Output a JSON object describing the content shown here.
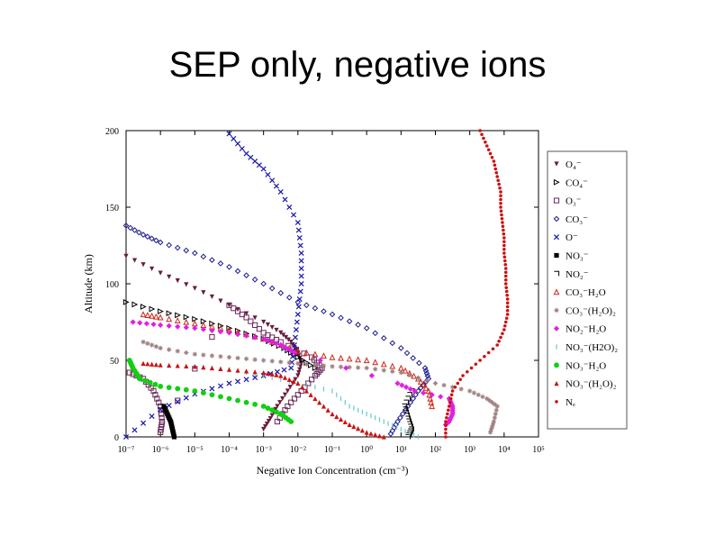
{
  "slide": {
    "title": "SEP only, negative ions"
  },
  "chart_data": {
    "type": "scatter",
    "title": "SEP only, negative ions",
    "xlabel": "Negative Ion Concentration (cm⁻³)",
    "ylabel": "Altitude (km)",
    "xscale": "log",
    "xlim": [
      1e-07,
      100000.0
    ],
    "ylim": [
      0,
      200
    ],
    "x_ticks": [
      {
        "v": -7,
        "label": "10⁻⁷"
      },
      {
        "v": -6,
        "label": "10⁻⁶"
      },
      {
        "v": -5,
        "label": "10⁻⁵"
      },
      {
        "v": -4,
        "label": "10⁻⁴"
      },
      {
        "v": -3,
        "label": "10⁻³"
      },
      {
        "v": -2,
        "label": "10⁻²"
      },
      {
        "v": -1,
        "label": "10⁻¹"
      },
      {
        "v": 0,
        "label": "10⁰"
      },
      {
        "v": 1,
        "label": "10¹"
      },
      {
        "v": 2,
        "label": "10²"
      },
      {
        "v": 3,
        "label": "10³"
      },
      {
        "v": 4,
        "label": "10⁴"
      },
      {
        "v": 5,
        "label": "10⁵"
      }
    ],
    "y_ticks": [
      0,
      50,
      100,
      150,
      200
    ],
    "legend_position": "right",
    "series": [
      {
        "name": "O₄⁻",
        "color": "#6b1d3c",
        "marker": "tri-down",
        "points": [
          [
            -7,
            118
          ],
          [
            -6,
            107
          ],
          [
            -5,
            97
          ],
          [
            -4,
            86
          ],
          [
            -3,
            75
          ],
          [
            -2.5,
            68
          ],
          [
            -2.2,
            62
          ],
          [
            -2,
            55
          ],
          [
            -1.9,
            48
          ],
          [
            -2,
            40
          ],
          [
            -2.3,
            30
          ],
          [
            -2.6,
            20
          ],
          [
            -2.8,
            12
          ],
          [
            -3,
            5
          ]
        ]
      },
      {
        "name": "CO₄⁻",
        "color": "#000000",
        "marker": "tri-right",
        "points": [
          [
            -7,
            88
          ],
          [
            -6,
            82
          ],
          [
            -5,
            77
          ],
          [
            -4,
            71
          ],
          [
            -3,
            64
          ],
          [
            -2.4,
            58
          ],
          [
            -2,
            52
          ],
          [
            -1.5,
            45
          ]
        ]
      },
      {
        "name": "O₃⁻",
        "color": "#6a2a5a",
        "marker": "square",
        "points": [
          [
            -6.9,
            42
          ],
          [
            -6.5,
            38
          ],
          [
            -6.2,
            30
          ],
          [
            -6,
            20
          ],
          [
            -5.95,
            10
          ],
          [
            -6,
            3
          ],
          [
            -4,
            86
          ],
          [
            -3.5,
            78
          ],
          [
            -3,
            68
          ],
          [
            -2.5,
            62
          ],
          [
            -1.6,
            52
          ],
          [
            -1.3,
            45
          ],
          [
            -1.5,
            40
          ],
          [
            -1.9,
            30
          ],
          [
            -2.3,
            20
          ],
          [
            -2.6,
            10
          ]
        ]
      },
      {
        "name": "CO₃⁻",
        "color": "#1c1c8f",
        "marker": "diamond",
        "points": [
          [
            -7,
            138
          ],
          [
            -6.5,
            132
          ],
          [
            -6,
            127
          ],
          [
            -5,
            120
          ],
          [
            -4,
            111
          ],
          [
            -3,
            100
          ],
          [
            -2,
            88
          ],
          [
            -1,
            80
          ],
          [
            0,
            71
          ],
          [
            1,
            58
          ],
          [
            1.7,
            45
          ],
          [
            1.8,
            38
          ],
          [
            1.5,
            30
          ],
          [
            1.2,
            20
          ],
          [
            0.9,
            10
          ],
          [
            0.7,
            2
          ]
        ]
      },
      {
        "name": "O⁻",
        "color": "#1a1aa8",
        "marker": "cross",
        "points": [
          [
            -4,
            198
          ],
          [
            -3.5,
            185
          ],
          [
            -3,
            175
          ],
          [
            -2.5,
            160
          ],
          [
            -2,
            140
          ],
          [
            -1.9,
            120
          ],
          [
            -1.9,
            100
          ],
          [
            -2,
            80
          ],
          [
            -2.1,
            60
          ],
          [
            -2.2,
            45
          ],
          [
            -3,
            40
          ],
          [
            -4,
            35
          ],
          [
            -5,
            28
          ],
          [
            -6,
            18
          ],
          [
            -7,
            0
          ]
        ]
      },
      {
        "name": "NO₃⁻",
        "color": "#000000",
        "marker": "square-filled",
        "points": [
          [
            -5.9,
            20
          ],
          [
            -5.8,
            15
          ],
          [
            -5.7,
            10
          ],
          [
            -5.65,
            5
          ],
          [
            -5.6,
            0
          ]
        ]
      },
      {
        "name": "NO₂⁻",
        "color": "#000000",
        "marker": "line",
        "points": [
          [
            1.3,
            30
          ],
          [
            1.1,
            20
          ],
          [
            1.2,
            12
          ],
          [
            1.3,
            5
          ],
          [
            1.2,
            0
          ]
        ]
      },
      {
        "name": "CO₃⁻H₂O",
        "color": "#cc2a1a",
        "marker": "tri-up-open",
        "points": [
          [
            -6.5,
            80
          ],
          [
            -6,
            78
          ],
          [
            -5,
            74
          ],
          [
            -4,
            70
          ],
          [
            -3,
            64
          ],
          [
            -2,
            56
          ],
          [
            -1,
            52
          ],
          [
            0,
            50
          ],
          [
            1,
            45
          ],
          [
            1.5,
            38
          ],
          [
            1.8,
            30
          ],
          [
            1.9,
            20
          ]
        ]
      },
      {
        "name": "CO₃⁻(H₂O)₂",
        "color": "#a08080",
        "marker": "asterisk",
        "points": [
          [
            -6.5,
            62
          ],
          [
            -6,
            58
          ],
          [
            -5,
            54
          ],
          [
            -4,
            52
          ],
          [
            -3,
            50
          ],
          [
            -2,
            48
          ],
          [
            -1,
            46
          ],
          [
            0,
            45
          ],
          [
            1,
            42
          ],
          [
            2,
            35
          ],
          [
            3,
            30
          ],
          [
            3.5,
            25
          ],
          [
            3.8,
            20
          ],
          [
            3.7,
            10
          ],
          [
            3.6,
            3
          ]
        ]
      },
      {
        "name": "NO₂⁻H₂O",
        "color": "#e020e0",
        "marker": "diamond-filled",
        "points": [
          [
            -6.8,
            75
          ],
          [
            -6,
            73
          ],
          [
            -5,
            71
          ],
          [
            -4,
            68
          ],
          [
            -3,
            64
          ],
          [
            -2.5,
            60
          ],
          [
            -2.1,
            55
          ],
          [
            0.9,
            35
          ],
          [
            1.4,
            30
          ],
          [
            2.4,
            25
          ],
          [
            2.5,
            20
          ],
          [
            2.5,
            15
          ],
          [
            2.4,
            10
          ],
          [
            2.3,
            8
          ]
        ]
      },
      {
        "name": "NO₃⁻(H2O)₂",
        "color": "#66c8d0",
        "marker": "vline",
        "points": [
          [
            -5,
            46
          ],
          [
            -4,
            44
          ],
          [
            -3,
            40
          ],
          [
            -2,
            35
          ],
          [
            -1,
            30
          ],
          [
            -0.5,
            20
          ],
          [
            0,
            15
          ],
          [
            0.5,
            10
          ],
          [
            1,
            5
          ],
          [
            1.5,
            0
          ]
        ]
      },
      {
        "name": "NO₃⁻H₂O",
        "color": "#10d010",
        "marker": "circle-filled",
        "points": [
          [
            -6.9,
            50
          ],
          [
            -6.8,
            45
          ],
          [
            -6.6,
            38
          ],
          [
            -6,
            33
          ],
          [
            -5,
            30
          ],
          [
            -4,
            25
          ],
          [
            -3,
            20
          ],
          [
            -2.5,
            15
          ],
          [
            -2.2,
            10
          ]
        ]
      },
      {
        "name": "NO₃⁻(H₂O)₂",
        "color": "#cc1010",
        "marker": "tri-up",
        "points": [
          [
            -6.5,
            48
          ],
          [
            -6,
            47
          ],
          [
            -5,
            46
          ],
          [
            -4,
            44
          ],
          [
            -3,
            42
          ],
          [
            -2.5,
            40
          ],
          [
            -2,
            35
          ],
          [
            -1.5,
            25
          ],
          [
            -1,
            15
          ],
          [
            -0.5,
            8
          ],
          [
            0,
            3
          ],
          [
            0.5,
            0
          ]
        ]
      },
      {
        "name": "Nₑ",
        "color": "#cc1010",
        "marker": "dot",
        "points": [
          [
            3.3,
            200
          ],
          [
            3.5,
            190
          ],
          [
            3.7,
            180
          ],
          [
            3.8,
            170
          ],
          [
            3.9,
            160
          ],
          [
            3.9,
            150
          ],
          [
            3.95,
            140
          ],
          [
            4,
            130
          ],
          [
            4,
            120
          ],
          [
            4.05,
            110
          ],
          [
            4.05,
            100
          ],
          [
            4.1,
            90
          ],
          [
            4.1,
            80
          ],
          [
            4,
            70
          ],
          [
            3.8,
            60
          ],
          [
            3.3,
            50
          ],
          [
            2.8,
            40
          ],
          [
            2.5,
            30
          ],
          [
            2.4,
            20
          ],
          [
            2.3,
            10
          ],
          [
            2.3,
            0
          ]
        ]
      }
    ]
  }
}
